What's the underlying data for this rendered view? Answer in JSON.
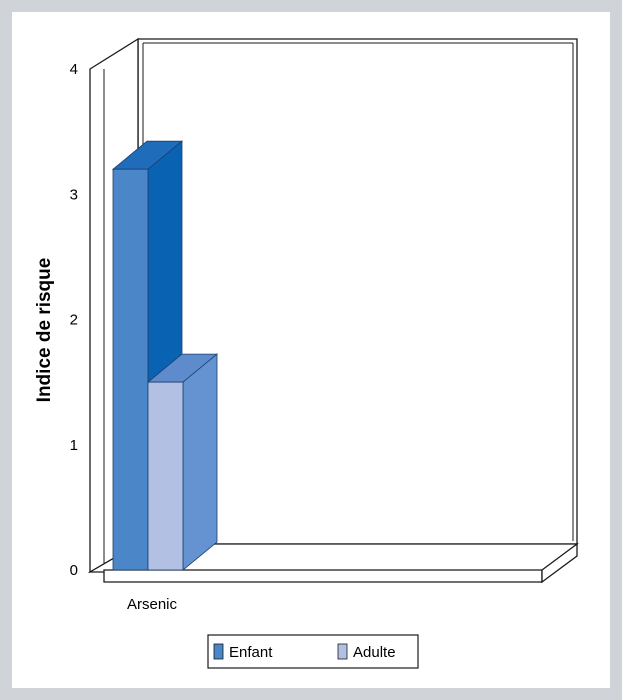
{
  "chart_data": {
    "type": "bar",
    "categories": [
      "Arsenic"
    ],
    "series": [
      {
        "name": "Enfant",
        "values": [
          3.2
        ]
      },
      {
        "name": "Adulte",
        "values": [
          1.5
        ]
      }
    ],
    "ylabel": "Indice de risque",
    "xlabel": "",
    "ylim": [
      0,
      4
    ],
    "yticks": [
      0,
      1,
      2,
      3,
      4
    ],
    "grid": false,
    "legend_position": "bottom",
    "three_d": true,
    "colors": {
      "Enfant": {
        "front": "#4a86c8",
        "side": "#0a62b2",
        "top": "#1f6dba"
      },
      "Adulte": {
        "front": "#b2c0e4",
        "side": "#6592d0",
        "top": "#5d8bcc"
      }
    }
  }
}
